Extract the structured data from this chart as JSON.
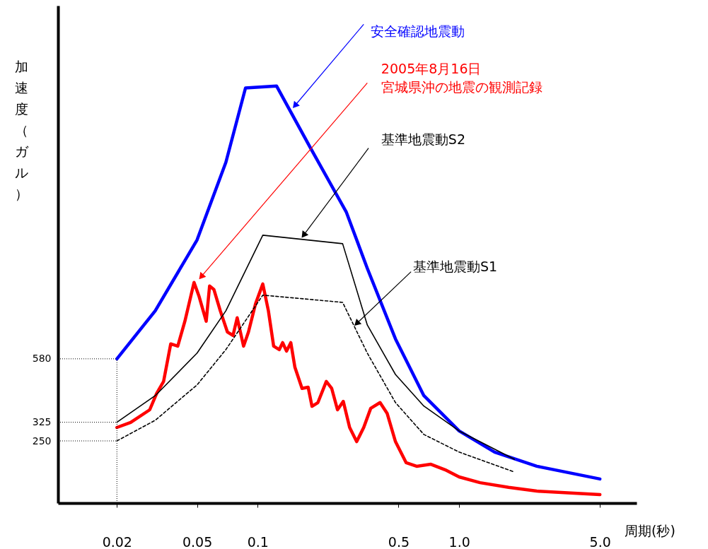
{
  "chart_data": {
    "type": "line",
    "xlabel": "周期(秒)",
    "ylabel": "加速度（ガル）",
    "log": "x",
    "xlim": [
      0.0102,
      7.6
    ],
    "xticks": [
      0.02,
      0.05,
      0.1,
      0.5,
      {
        "value": 1.0,
        "label": "1.0"
      },
      {
        "value": 5.0,
        "label": "5.0"
      }
    ],
    "ylim": [
      0,
      2000
    ],
    "yticks": [
      250,
      325,
      580
    ],
    "grid": false,
    "series": [
      {
        "name": "安全確認地震動",
        "color": "#0000ff",
        "line_style": "solid",
        "x": [
          0.02,
          0.031,
          0.05,
          0.0695,
          0.087,
          0.124,
          0.183,
          0.275,
          0.35,
          0.483,
          0.668,
          1.0,
          1.5,
          2.43,
          5.0
        ],
        "values": [
          580,
          773,
          1058,
          1370,
          1669,
          1677,
          1427,
          1171,
          944,
          660,
          432,
          290,
          205,
          148,
          97
        ]
      },
      {
        "name": "2005年8月16日宮城県沖の地震の観測記録",
        "color": "#ff0000",
        "line_style": "solid",
        "x": [
          0.02,
          0.0234,
          0.0291,
          0.0315,
          0.0341,
          0.037,
          0.0401,
          0.0435,
          0.0483,
          0.0512,
          0.0555,
          0.0577,
          0.0606,
          0.0652,
          0.0707,
          0.0754,
          0.0791,
          0.0851,
          0.09,
          0.0976,
          0.106,
          0.113,
          0.12,
          0.128,
          0.133,
          0.139,
          0.146,
          0.153,
          0.166,
          0.178,
          0.186,
          0.199,
          0.219,
          0.233,
          0.249,
          0.266,
          0.286,
          0.31,
          0.336,
          0.364,
          0.405,
          0.439,
          0.483,
          0.546,
          0.615,
          0.724,
          0.851,
          1.0,
          1.27,
          1.76,
          2.43,
          5.0
        ],
        "values": [
          304,
          324,
          375,
          441,
          489,
          640,
          631,
          731,
          887,
          830,
          731,
          873,
          859,
          773,
          688,
          674,
          745,
          631,
          688,
          802,
          881,
          773,
          631,
          617,
          645,
          611,
          645,
          546,
          461,
          466,
          389,
          404,
          489,
          461,
          375,
          409,
          304,
          247,
          304,
          381,
          404,
          361,
          247,
          162,
          148,
          156,
          134,
          105,
          82,
          63,
          48,
          34
        ]
      },
      {
        "name": "基準地震動S2",
        "color": "#000000",
        "line_style": "solid",
        "x": [
          0.02,
          0.031,
          0.05,
          0.0695,
          0.106,
          0.264,
          0.35,
          0.483,
          0.668,
          1.0,
          1.88
        ],
        "values": [
          325,
          432,
          603,
          773,
          1077,
          1043,
          716,
          517,
          390,
          290,
          176
        ]
      },
      {
        "name": "基準地震動S1",
        "color": "#000000",
        "line_style": "dashed",
        "x": [
          0.02,
          0.031,
          0.05,
          0.0695,
          0.106,
          0.264,
          0.35,
          0.483,
          0.668,
          1.0,
          1.88
        ],
        "values": [
          250,
          333,
          475,
          617,
          836,
          807,
          603,
          404,
          276,
          205,
          125
        ]
      }
    ],
    "ref_lines": [
      {
        "axis": "y",
        "value": 580,
        "line_style": "dotted"
      },
      {
        "axis": "y",
        "value": 325,
        "line_style": "dotted"
      },
      {
        "axis": "y",
        "value": 250,
        "line_style": "dotted"
      },
      {
        "axis": "x",
        "value": 0.02,
        "line_style": "dotted"
      }
    ]
  }
}
